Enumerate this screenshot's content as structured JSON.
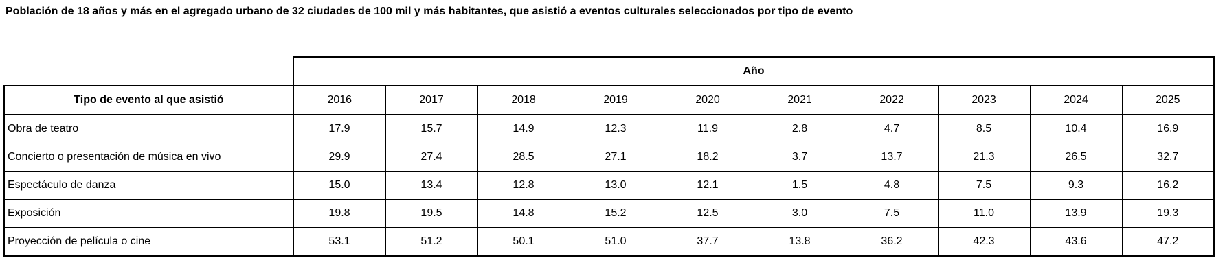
{
  "title": "Población de 18 años y más en el agregado urbano de 32 ciudades de 100 mil y más habitantes, que asistió a eventos culturales seleccionados por tipo de evento",
  "table": {
    "group_header": "Año",
    "row_header": "Tipo de evento al que asistió",
    "years": [
      "2016",
      "2017",
      "2018",
      "2019",
      "2020",
      "2021",
      "2022",
      "2023",
      "2024",
      "2025"
    ],
    "rows": [
      {
        "label": "Obra de teatro",
        "values": [
          "17.9",
          "15.7",
          "14.9",
          "12.3",
          "11.9",
          "2.8",
          "4.7",
          "8.5",
          "10.4",
          "16.9"
        ]
      },
      {
        "label": "Concierto o presentación de música en vivo",
        "values": [
          "29.9",
          "27.4",
          "28.5",
          "27.1",
          "18.2",
          "3.7",
          "13.7",
          "21.3",
          "26.5",
          "32.7"
        ]
      },
      {
        "label": "Espectáculo de danza",
        "values": [
          "15.0",
          "13.4",
          "12.8",
          "13.0",
          "12.1",
          "1.5",
          "4.8",
          "7.5",
          "9.3",
          "16.2"
        ]
      },
      {
        "label": "Exposición",
        "values": [
          "19.8",
          "19.5",
          "14.8",
          "15.2",
          "12.5",
          "3.0",
          "7.5",
          "11.0",
          "13.9",
          "19.3"
        ]
      },
      {
        "label": "Proyección de película o cine",
        "values": [
          "53.1",
          "51.2",
          "50.1",
          "51.0",
          "37.7",
          "13.8",
          "36.2",
          "42.3",
          "43.6",
          "47.2"
        ]
      }
    ]
  },
  "chart_data": {
    "type": "table",
    "title": "Población de 18 años y más en el agregado urbano de 32 ciudades de 100 mil y más habitantes, que asistió a eventos culturales seleccionados por tipo de evento",
    "categories": [
      "2016",
      "2017",
      "2018",
      "2019",
      "2020",
      "2021",
      "2022",
      "2023",
      "2024",
      "2025"
    ],
    "series": [
      {
        "name": "Obra de teatro",
        "values": [
          17.9,
          15.7,
          14.9,
          12.3,
          11.9,
          2.8,
          4.7,
          8.5,
          10.4,
          16.9
        ]
      },
      {
        "name": "Concierto o presentación de música en vivo",
        "values": [
          29.9,
          27.4,
          28.5,
          27.1,
          18.2,
          3.7,
          13.7,
          21.3,
          26.5,
          32.7
        ]
      },
      {
        "name": "Espectáculo de danza",
        "values": [
          15.0,
          13.4,
          12.8,
          13.0,
          12.1,
          1.5,
          4.8,
          7.5,
          9.3,
          16.2
        ]
      },
      {
        "name": "Exposición",
        "values": [
          19.8,
          19.5,
          14.8,
          15.2,
          12.5,
          3.0,
          7.5,
          11.0,
          13.9,
          19.3
        ]
      },
      {
        "name": "Proyección de película o cine",
        "values": [
          53.1,
          51.2,
          50.1,
          51.0,
          37.7,
          13.8,
          36.2,
          42.3,
          43.6,
          47.2
        ]
      }
    ],
    "xlabel": "Año",
    "ylabel": "",
    "grid": true,
    "legend_position": "none"
  },
  "colors": {
    "background": "#ffffff",
    "text": "#000000",
    "border": "#000000"
  }
}
